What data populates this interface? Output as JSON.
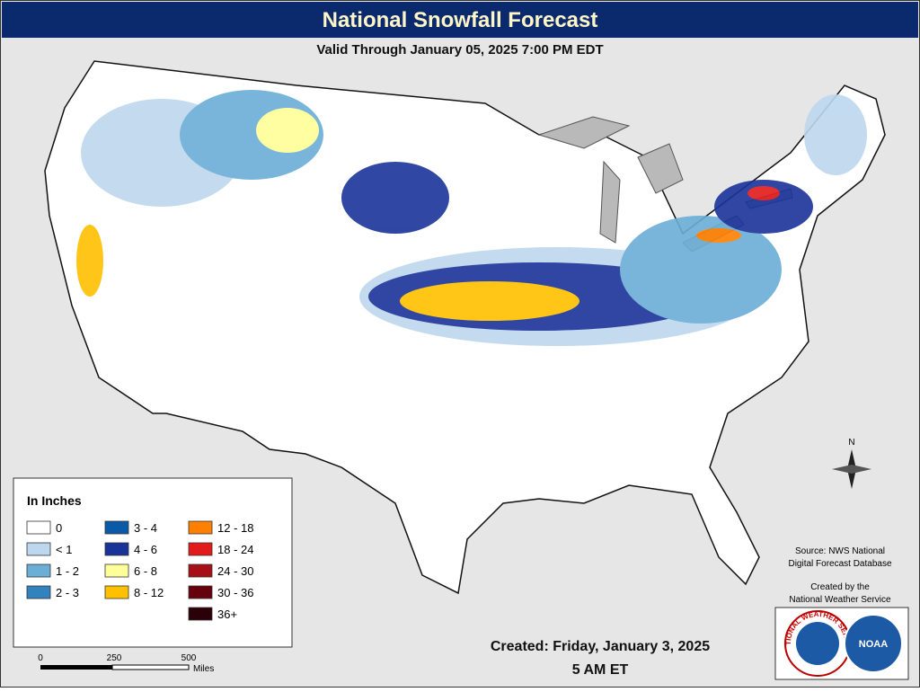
{
  "header": {
    "title": "National Snowfall Forecast",
    "subtitle": "Valid Through January 05, 2025 7:00 PM EDT"
  },
  "legend": {
    "title": "In Inches",
    "items": [
      {
        "label": "0",
        "color": "#ffffff"
      },
      {
        "label": "< 1",
        "color": "#bdd7ee"
      },
      {
        "label": "1 - 2",
        "color": "#6baed6"
      },
      {
        "label": "2 - 3",
        "color": "#3182bd"
      },
      {
        "label": "3 - 4",
        "color": "#0b5aa8"
      },
      {
        "label": "4 - 6",
        "color": "#1a3399"
      },
      {
        "label": "6 - 8",
        "color": "#ffff99"
      },
      {
        "label": "8 - 12",
        "color": "#ffc000"
      },
      {
        "label": "12 - 18",
        "color": "#ff8000"
      },
      {
        "label": "18 - 24",
        "color": "#e31a1c"
      },
      {
        "label": "24 - 30",
        "color": "#a50f15"
      },
      {
        "label": "30 - 36",
        "color": "#67000d"
      },
      {
        "label": "36+",
        "color": "#2b0008"
      }
    ]
  },
  "scale_bar": {
    "ticks": [
      "0",
      "250",
      "500"
    ],
    "unit": "Miles"
  },
  "compass": "N",
  "source": [
    "Source: NWS National",
    "Digital Forecast Database"
  ],
  "credit": [
    "Created by the",
    "National Weather Service"
  ],
  "created": [
    "Created: Friday, January 3, 2025",
    "5 AM ET"
  ],
  "logos": {
    "nws": "NATIONAL WEATHER SERVICE",
    "noaa": "NOAA"
  }
}
